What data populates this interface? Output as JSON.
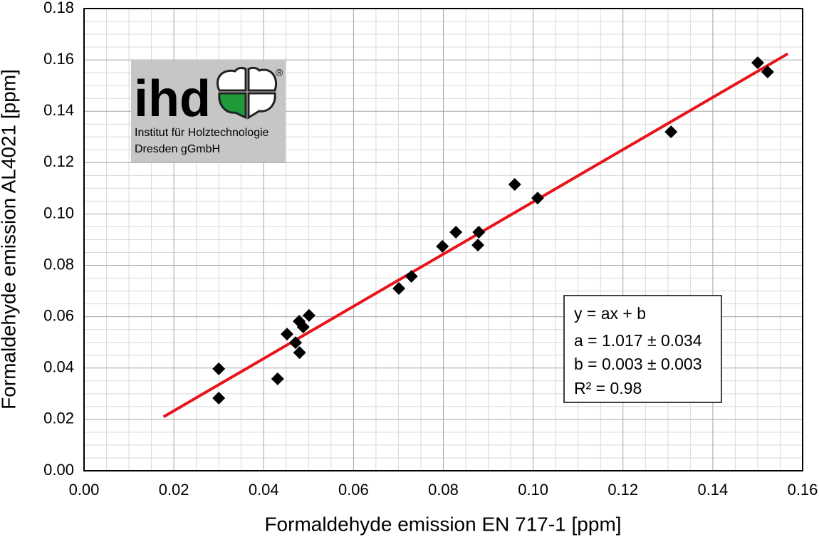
{
  "chart_data": {
    "type": "scatter",
    "x_label": "Formaldehyde emission EN 717-1 [ppm]",
    "y_label": "Formaldehyde emission AL4021 [ppm]",
    "x": [
      0.03,
      0.03,
      0.0431,
      0.0452,
      0.0471,
      0.0479,
      0.048,
      0.0488,
      0.0501,
      0.0701,
      0.0729,
      0.0798,
      0.0828,
      0.0879,
      0.0877,
      0.0959,
      0.101,
      0.1307,
      0.15,
      0.1522
    ],
    "values": [
      0.0397,
      0.0283,
      0.0358,
      0.0532,
      0.0499,
      0.0582,
      0.046,
      0.056,
      0.0605,
      0.071,
      0.0757,
      0.0874,
      0.0929,
      0.0929,
      0.0879,
      0.1115,
      0.1062,
      0.132,
      0.1589,
      0.1553
    ],
    "color": "#000000",
    "fit": {
      "x": [
        0.0177,
        0.1567
      ],
      "values": [
        0.021,
        0.1624
      ],
      "color": "#e8141a"
    },
    "xlim": [
      0,
      0.16
    ],
    "ylim": [
      0,
      0.18
    ],
    "xticks": [
      {
        "value": 0,
        "label": "0.00"
      },
      {
        "value": 0.02,
        "label": "0.02"
      },
      {
        "value": 0.04,
        "label": "0.04"
      },
      {
        "value": 0.06,
        "label": "0.06"
      },
      {
        "value": 0.08,
        "label": "0.08"
      },
      {
        "value": 0.1,
        "label": "0.10"
      },
      {
        "value": 0.12,
        "label": "0.12"
      },
      {
        "value": 0.14,
        "label": "0.14"
      },
      {
        "value": 0.16,
        "label": "0.16"
      }
    ],
    "yticks": [
      {
        "value": 0,
        "label": "0.00"
      },
      {
        "value": 0.02,
        "label": "0.02"
      },
      {
        "value": 0.04,
        "label": "0.04"
      },
      {
        "value": 0.06,
        "label": "0.06"
      },
      {
        "value": 0.08,
        "label": "0.08"
      },
      {
        "value": 0.1,
        "label": "0.10"
      },
      {
        "value": 0.12,
        "label": "0.12"
      },
      {
        "value": 0.14,
        "label": "0.14"
      },
      {
        "value": 0.16,
        "label": "0.16"
      },
      {
        "value": 0.18,
        "label": "0.18"
      }
    ],
    "grid": true,
    "annotation": [
      "y = ax + b",
      "a = 1.017 ± 0.034",
      "b = 0.003 ± 0.003",
      "R² = 0.98"
    ]
  },
  "logo": {
    "name": "ihd",
    "mark": "®",
    "lines": [
      "Institut für Holztechnologie",
      "Dresden gGmbH"
    ]
  }
}
